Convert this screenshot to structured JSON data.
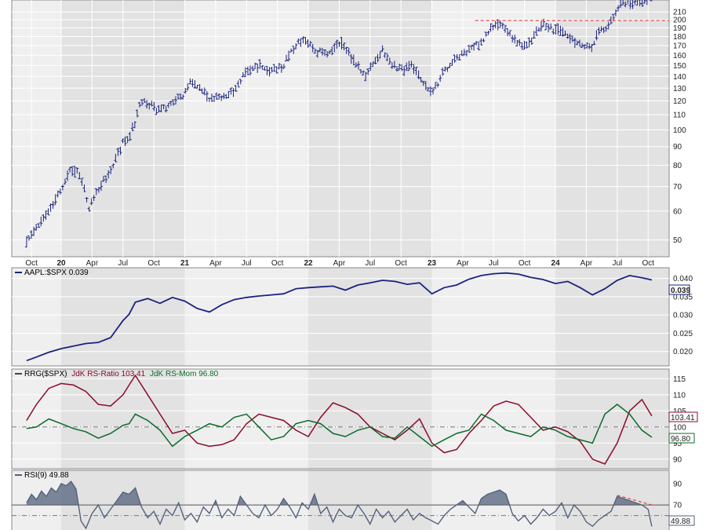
{
  "chart_data": [
    {
      "panel": "price",
      "type": "ohlc",
      "x_labels": [
        "Oct",
        "20",
        "Apr",
        "Jul",
        "Oct",
        "21",
        "Apr",
        "Jul",
        "Oct",
        "22",
        "Apr",
        "Jul",
        "Oct",
        "23",
        "Apr",
        "Jul",
        "Oct",
        "24",
        "Apr",
        "Jul",
        "Oct"
      ],
      "y_ticks": [
        50,
        60,
        70,
        80,
        90,
        100,
        110,
        120,
        130,
        140,
        150,
        160,
        170,
        180,
        190,
        200,
        210
      ],
      "ylim": [
        45,
        222
      ],
      "y_scale": "log",
      "resistance_level": 199,
      "series": [
        {
          "x": [
            2019.72,
            2019.8,
            2019.9,
            2020.0,
            2020.08,
            2020.12,
            2020.18,
            2020.22,
            2020.3,
            2020.4,
            2020.5,
            2020.55,
            2020.6,
            2020.65,
            2020.7,
            2020.8,
            2020.9,
            2021.0,
            2021.05,
            2021.12,
            2021.2,
            2021.3,
            2021.4,
            2021.5,
            2021.55,
            2021.6,
            2021.7,
            2021.8,
            2021.85,
            2021.95,
            2022.0,
            2022.05,
            2022.15,
            2022.25,
            2022.35,
            2022.4,
            2022.45,
            2022.55,
            2022.6,
            2022.68,
            2022.75,
            2022.83,
            2022.9,
            2023.0,
            2023.1,
            2023.2,
            2023.3,
            2023.4,
            2023.45,
            2023.5,
            2023.55,
            2023.6,
            2023.7,
            2023.75,
            2023.83,
            2023.9,
            2024.0,
            2024.08,
            2024.15,
            2024.2,
            2024.3,
            2024.35,
            2024.4,
            2024.45,
            2024.5,
            2024.55,
            2024.6,
            2024.65,
            2024.7,
            2024.75,
            2024.78
          ],
          "y": [
            50,
            54,
            60,
            68,
            79,
            77,
            72,
            60,
            69,
            78,
            92,
            96,
            105,
            121,
            118,
            113,
            119,
            125,
            136,
            130,
            121,
            123,
            128,
            145,
            147,
            150,
            145,
            150,
            163,
            176,
            172,
            165,
            161,
            174,
            158,
            150,
            140,
            155,
            165,
            151,
            147,
            150,
            140,
            125,
            145,
            157,
            165,
            175,
            182,
            193,
            195,
            186,
            174,
            170,
            180,
            194,
            187,
            182,
            175,
            170,
            167,
            185,
            189,
            199,
            215,
            225,
            220,
            226,
            226,
            226,
            229
          ]
        }
      ]
    },
    {
      "panel": "ratio",
      "type": "line",
      "title": "AAPL:$SPX 0.039",
      "last_value_label": "0.039",
      "y_ticks": [
        0.02,
        0.025,
        0.03,
        0.035,
        0.04
      ],
      "y_tick_labels": [
        "0.020",
        "0.025",
        "0.030",
        "0.035",
        "0.040"
      ],
      "ylim": [
        0.0165,
        0.0425
      ],
      "series": [
        {
          "color": "#1a237e",
          "x": [
            2019.72,
            2019.8,
            2019.9,
            2020.0,
            2020.1,
            2020.2,
            2020.3,
            2020.4,
            2020.5,
            2020.55,
            2020.6,
            2020.7,
            2020.8,
            2020.9,
            2021.0,
            2021.1,
            2021.2,
            2021.3,
            2021.4,
            2021.5,
            2021.6,
            2021.7,
            2021.8,
            2021.9,
            2022.0,
            2022.1,
            2022.2,
            2022.3,
            2022.4,
            2022.5,
            2022.6,
            2022.7,
            2022.8,
            2022.9,
            2023.0,
            2023.1,
            2023.2,
            2023.3,
            2023.4,
            2023.5,
            2023.6,
            2023.7,
            2023.8,
            2023.9,
            2024.0,
            2024.1,
            2024.2,
            2024.3,
            2024.4,
            2024.5,
            2024.6,
            2024.7,
            2024.78
          ],
          "y": [
            0.0175,
            0.0185,
            0.0198,
            0.0208,
            0.0215,
            0.0222,
            0.0225,
            0.0238,
            0.0285,
            0.0302,
            0.0335,
            0.0345,
            0.0332,
            0.0348,
            0.0338,
            0.0318,
            0.0308,
            0.0328,
            0.0342,
            0.0348,
            0.0352,
            0.0355,
            0.0358,
            0.0372,
            0.0375,
            0.0377,
            0.0379,
            0.0368,
            0.0382,
            0.0388,
            0.0395,
            0.0392,
            0.0384,
            0.0388,
            0.0358,
            0.0375,
            0.0382,
            0.0398,
            0.0408,
            0.0413,
            0.0415,
            0.0412,
            0.0403,
            0.0397,
            0.0386,
            0.0392,
            0.0375,
            0.0355,
            0.0372,
            0.0395,
            0.0408,
            0.0402,
            0.0396
          ]
        }
      ]
    },
    {
      "panel": "rrg",
      "type": "line",
      "title_parts": [
        "RRG($SPX)",
        "JdK RS-Ratio 103.41",
        "JdK RS-Mom 96.80"
      ],
      "title_colors": [
        "#000000",
        "#8b0a2a",
        "#0b6b2b"
      ],
      "last_value_labels": [
        "103.41",
        "96.80"
      ],
      "y_ticks": [
        90,
        95,
        100,
        105,
        110,
        115
      ],
      "ylim": [
        87.5,
        117.5
      ],
      "reference_line": 100,
      "series": [
        {
          "name": "JdK RS-Ratio",
          "color": "#8b0a2a",
          "x": [
            2019.72,
            2019.8,
            2019.9,
            2020.0,
            2020.1,
            2020.2,
            2020.3,
            2020.4,
            2020.5,
            2020.55,
            2020.6,
            2020.7,
            2020.8,
            2020.9,
            2021.0,
            2021.1,
            2021.2,
            2021.3,
            2021.4,
            2021.5,
            2021.6,
            2021.7,
            2021.8,
            2021.9,
            2022.0,
            2022.1,
            2022.2,
            2022.3,
            2022.4,
            2022.5,
            2022.6,
            2022.7,
            2022.8,
            2022.9,
            2023.0,
            2023.1,
            2023.2,
            2023.3,
            2023.4,
            2023.5,
            2023.6,
            2023.7,
            2023.8,
            2023.9,
            2024.0,
            2024.1,
            2024.2,
            2024.3,
            2024.4,
            2024.5,
            2024.6,
            2024.7,
            2024.78
          ],
          "y": [
            102,
            107,
            112,
            113.5,
            113,
            111,
            107,
            106.5,
            110,
            113,
            116,
            110,
            104,
            98,
            99,
            95,
            94,
            94.5,
            96,
            101,
            104,
            103,
            102,
            99,
            97,
            103,
            107.5,
            106,
            104,
            100,
            98,
            96,
            99,
            102.5,
            95,
            92,
            93,
            98,
            102,
            106.5,
            108,
            107,
            103,
            99,
            100,
            98.5,
            95.5,
            90,
            88.5,
            95,
            105,
            108.5,
            103.4
          ]
        },
        {
          "name": "JdK RS-Mom",
          "color": "#0b6b2b",
          "x": [
            2019.72,
            2019.8,
            2019.9,
            2020.0,
            2020.1,
            2020.2,
            2020.3,
            2020.4,
            2020.5,
            2020.55,
            2020.6,
            2020.7,
            2020.8,
            2020.9,
            2021.0,
            2021.1,
            2021.2,
            2021.3,
            2021.4,
            2021.5,
            2021.6,
            2021.7,
            2021.8,
            2021.9,
            2022.0,
            2022.1,
            2022.2,
            2022.3,
            2022.4,
            2022.5,
            2022.6,
            2022.7,
            2022.8,
            2022.9,
            2023.0,
            2023.1,
            2023.2,
            2023.3,
            2023.4,
            2023.5,
            2023.6,
            2023.7,
            2023.8,
            2023.9,
            2024.0,
            2024.1,
            2024.2,
            2024.3,
            2024.4,
            2024.5,
            2024.6,
            2024.7,
            2024.78
          ],
          "y": [
            99.5,
            100,
            102.5,
            101,
            99.5,
            98.5,
            96.5,
            98,
            100.5,
            101,
            104,
            102,
            99,
            94,
            97,
            99,
            101,
            100,
            103,
            104,
            100,
            96,
            97,
            101,
            102,
            101,
            98,
            97,
            99,
            100,
            97,
            96.5,
            100,
            97,
            94,
            96,
            98,
            99,
            104,
            102,
            99,
            98,
            97,
            100,
            99,
            97,
            96,
            95,
            104,
            107,
            104,
            99,
            96.8
          ]
        }
      ]
    },
    {
      "panel": "rsi",
      "type": "area",
      "title": "RSI(9) 49.88",
      "last_value_label": "49.88",
      "y_ticks": [
        70,
        90
      ],
      "ylim": [
        45,
        101
      ],
      "overbought_level": 70,
      "reference_line": 60,
      "series": [
        {
          "name": "RSI(9)",
          "color": "#54617c",
          "x": [
            2019.72,
            2019.76,
            2019.8,
            2019.84,
            2019.88,
            2019.92,
            2019.96,
            2020.0,
            2020.04,
            2020.08,
            2020.12,
            2020.16,
            2020.2,
            2020.25,
            2020.3,
            2020.35,
            2020.4,
            2020.45,
            2020.5,
            2020.55,
            2020.6,
            2020.65,
            2020.7,
            2020.75,
            2020.8,
            2020.85,
            2020.9,
            2020.95,
            2021.0,
            2021.05,
            2021.1,
            2021.15,
            2021.2,
            2021.25,
            2021.3,
            2021.35,
            2021.4,
            2021.45,
            2021.5,
            2021.55,
            2021.6,
            2021.65,
            2021.7,
            2021.75,
            2021.8,
            2021.85,
            2021.9,
            2021.95,
            2022.0,
            2022.05,
            2022.1,
            2022.15,
            2022.2,
            2022.25,
            2022.3,
            2022.35,
            2022.4,
            2022.45,
            2022.5,
            2022.55,
            2022.6,
            2022.65,
            2022.7,
            2022.75,
            2022.8,
            2022.85,
            2022.9,
            2022.95,
            2023.0,
            2023.05,
            2023.1,
            2023.15,
            2023.2,
            2023.25,
            2023.3,
            2023.35,
            2023.4,
            2023.45,
            2023.5,
            2023.55,
            2023.6,
            2023.65,
            2023.7,
            2023.75,
            2023.8,
            2023.85,
            2023.9,
            2023.95,
            2024.0,
            2024.05,
            2024.1,
            2024.15,
            2024.2,
            2024.25,
            2024.3,
            2024.35,
            2024.4,
            2024.45,
            2024.5,
            2024.55,
            2024.6,
            2024.65,
            2024.7,
            2024.75,
            2024.78
          ],
          "y": [
            72,
            80,
            75,
            83,
            78,
            86,
            82,
            90,
            88,
            92,
            85,
            55,
            48,
            62,
            70,
            58,
            66,
            74,
            82,
            80,
            86,
            68,
            58,
            64,
            52,
            66,
            60,
            72,
            56,
            62,
            54,
            68,
            62,
            74,
            58,
            66,
            60,
            78,
            70,
            62,
            58,
            70,
            60,
            66,
            76,
            68,
            58,
            72,
            66,
            80,
            62,
            68,
            54,
            66,
            60,
            58,
            70,
            62,
            52,
            66,
            58,
            64,
            54,
            60,
            66,
            56,
            62,
            58,
            55,
            52,
            60,
            66,
            70,
            74,
            68,
            62,
            76,
            80,
            82,
            84,
            80,
            62,
            55,
            60,
            52,
            58,
            66,
            60,
            64,
            72,
            58,
            70,
            64,
            54,
            50,
            56,
            60,
            64,
            78,
            76,
            74,
            72,
            70,
            66,
            49.88
          ]
        }
      ],
      "trendline": {
        "x": [
          2024.5,
          2024.78
        ],
        "y": [
          79,
          70
        ]
      }
    }
  ]
}
